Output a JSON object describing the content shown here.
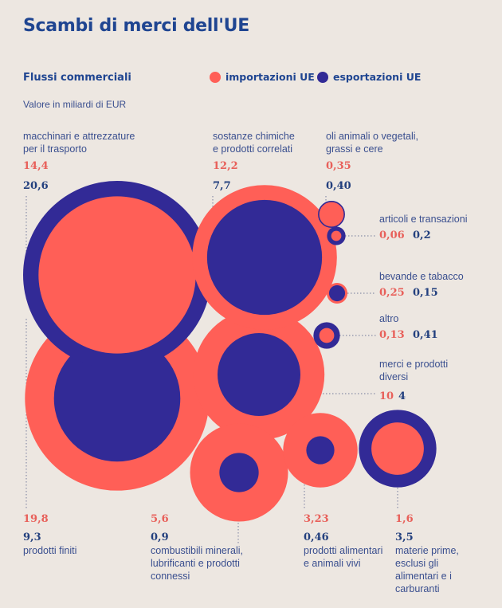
{
  "header": {
    "title": "Scambi di merci dell'UE",
    "subtitle": "Flussi commerciali",
    "unit": "Valore in miliardi di EUR"
  },
  "legend": [
    {
      "label": "importazioni UE",
      "color": "#ff5f57"
    },
    {
      "label": "esportazioni UE",
      "color": "#322a96"
    }
  ],
  "colors": {
    "imports": "#ff5f57",
    "exports": "#322a96",
    "background": "#ede7e1"
  },
  "chart_data": {
    "type": "bubble",
    "title": "Scambi di merci dell'UE",
    "subtitle": "Flussi commerciali",
    "unit": "Valore in miliardi di EUR",
    "series": [
      {
        "name": "importazioni UE",
        "color": "#ff5f57"
      },
      {
        "name": "esportazioni UE",
        "color": "#322a96"
      }
    ],
    "categories": [
      {
        "label": [
          "macchinari e attrezzature",
          "per il trasporto"
        ],
        "imports": 14.4,
        "exports": 20.6,
        "imports_text": "14,4",
        "exports_text": "20,6"
      },
      {
        "label": [
          "sostanze chimiche",
          "e prodotti correlati"
        ],
        "imports": 12.2,
        "exports": 7.7,
        "imports_text": "12,2",
        "exports_text": "7,7"
      },
      {
        "label": [
          "oli animali o vegetali,",
          "grassi e cere"
        ],
        "imports": 0.35,
        "exports": 0.4,
        "imports_text": "0,35",
        "exports_text": "0,40"
      },
      {
        "label": [
          "articoli e transazioni"
        ],
        "imports": 0.06,
        "exports": 0.2,
        "imports_text": "0,06",
        "exports_text": "0,2"
      },
      {
        "label": [
          "bevande e tabacco"
        ],
        "imports": 0.25,
        "exports": 0.15,
        "imports_text": "0,25",
        "exports_text": "0,15"
      },
      {
        "label": [
          "altro"
        ],
        "imports": 0.13,
        "exports": 0.41,
        "imports_text": "0,13",
        "exports_text": "0,41"
      },
      {
        "label": [
          "merci e prodotti",
          "diversi"
        ],
        "imports": 10,
        "exports": 4,
        "imports_text": "10",
        "exports_text": "4"
      },
      {
        "label": [
          "prodotti finiti"
        ],
        "imports": 19.8,
        "exports": 9.3,
        "imports_text": "19,8",
        "exports_text": "9,3"
      },
      {
        "label": [
          "combustibili minerali,",
          "lubrificanti e prodotti",
          "connessi"
        ],
        "imports": 5.6,
        "exports": 0.9,
        "imports_text": "5,6",
        "exports_text": "0,9"
      },
      {
        "label": [
          "prodotti alimentari",
          "e animali vivi"
        ],
        "imports": 3.23,
        "exports": 0.46,
        "imports_text": "3,23",
        "exports_text": "0,46"
      },
      {
        "label": [
          "materie prime,",
          "esclusi gli",
          "alimentari e i",
          "carburanti"
        ],
        "imports": 1.6,
        "exports": 3.5,
        "imports_text": "1,6",
        "exports_text": "3,5"
      }
    ]
  }
}
